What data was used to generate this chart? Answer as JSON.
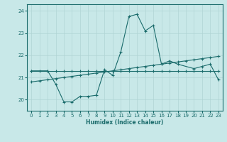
{
  "xlabel": "Humidex (Indice chaleur)",
  "bg_color": "#c8e8e8",
  "line_color": "#1a6b6b",
  "grid_color": "#b0d4d4",
  "xlim": [
    -0.5,
    23.5
  ],
  "ylim": [
    19.5,
    24.3
  ],
  "yticks": [
    20,
    21,
    22,
    23,
    24
  ],
  "series1_x": [
    0,
    1,
    2,
    3,
    4,
    5,
    6,
    7,
    8,
    9,
    10,
    11,
    12,
    13,
    14,
    15,
    16,
    17,
    18,
    19,
    20,
    21,
    22,
    23
  ],
  "series1_y": [
    21.3,
    21.3,
    21.3,
    21.3,
    21.3,
    21.3,
    21.3,
    21.3,
    21.3,
    21.3,
    21.3,
    21.3,
    21.3,
    21.3,
    21.3,
    21.3,
    21.3,
    21.3,
    21.3,
    21.3,
    21.3,
    21.3,
    21.3,
    21.3
  ],
  "series2_x": [
    0,
    1,
    2,
    3,
    4,
    5,
    6,
    7,
    8,
    9,
    10,
    11,
    12,
    13,
    14,
    15,
    16,
    17,
    18,
    19,
    20,
    21,
    22,
    23
  ],
  "series2_y": [
    20.8,
    20.85,
    20.9,
    20.95,
    21.0,
    21.05,
    21.1,
    21.15,
    21.2,
    21.25,
    21.3,
    21.35,
    21.4,
    21.45,
    21.5,
    21.55,
    21.6,
    21.65,
    21.7,
    21.75,
    21.8,
    21.85,
    21.9,
    21.95
  ],
  "series3_x": [
    0,
    2,
    3,
    4,
    5,
    6,
    7,
    8,
    9,
    10,
    11,
    12,
    13,
    14,
    15,
    16,
    17,
    18,
    20,
    21,
    22,
    23
  ],
  "series3_y": [
    21.3,
    21.3,
    20.7,
    19.9,
    19.9,
    20.15,
    20.15,
    20.2,
    21.35,
    21.1,
    22.15,
    23.75,
    23.85,
    23.1,
    23.35,
    21.6,
    21.75,
    21.6,
    21.4,
    21.5,
    21.6,
    20.9
  ]
}
